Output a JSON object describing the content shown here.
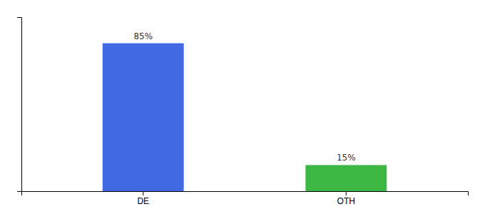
{
  "chart_data": {
    "type": "bar",
    "categories": [
      "DE",
      "OTH"
    ],
    "values": [
      85,
      15
    ],
    "value_labels": [
      "85%",
      "15%"
    ],
    "colors": [
      "#4169e1",
      "#3cb843"
    ],
    "ylim": [
      0,
      100
    ],
    "yticks": [],
    "data_labels": true,
    "tick_labels": "x"
  }
}
